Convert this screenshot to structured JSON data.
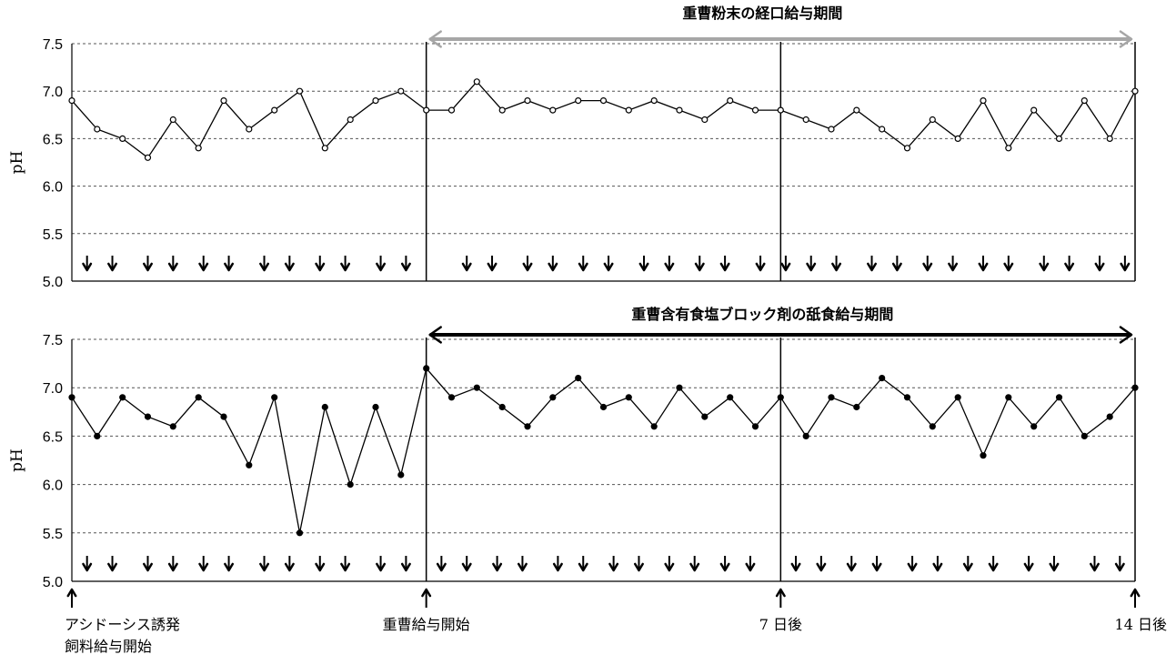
{
  "chart_data": [
    {
      "type": "line",
      "ylabel": "pH",
      "ylim": [
        5.0,
        7.5
      ],
      "yticks": [
        "5.0",
        "5.5",
        "6.0",
        "6.5",
        "7.0",
        "7.5"
      ],
      "xlim": [
        -7,
        14
      ],
      "grid": true,
      "marker": "open-circle",
      "series_color": "#000000",
      "period": {
        "label": "重曹粉末の経口給与期間",
        "start_day": 0,
        "end_day": 14,
        "arrow_color": "#a6a6a6"
      },
      "feeding_arrow_days": [
        -6.7,
        -6.2,
        -5.5,
        -5.0,
        -4.4,
        -3.9,
        -3.2,
        -2.7,
        -2.1,
        -1.6,
        -0.9,
        -0.4,
        0.8,
        1.3,
        2.0,
        2.5,
        3.1,
        3.6,
        4.3,
        4.8,
        5.4,
        5.9,
        6.6,
        7.1,
        7.6,
        8.1,
        8.8,
        9.3,
        9.9,
        10.4,
        11.0,
        11.5,
        12.2,
        12.7,
        13.3,
        13.8
      ],
      "series": [
        {
          "x": [
            -7.0,
            -6.5,
            -6.0,
            -5.5,
            -5.0,
            -4.5,
            -4.0,
            -3.5,
            -3.0,
            -2.5,
            -2.0,
            -1.5,
            -1.0,
            -0.5,
            0.0,
            0.5,
            1.0,
            1.5,
            2.0,
            2.5,
            3.0,
            3.5,
            4.0,
            4.5,
            5.0,
            5.5,
            6.0,
            6.5,
            7.0,
            7.5,
            8.0,
            8.5,
            9.0,
            9.5,
            10.0,
            10.5,
            11.0,
            11.5,
            12.0,
            12.5,
            13.0,
            13.5,
            14.0
          ],
          "y": [
            6.9,
            6.6,
            6.5,
            6.3,
            6.7,
            6.4,
            6.9,
            6.6,
            6.8,
            7.0,
            6.4,
            6.7,
            6.9,
            7.0,
            6.8,
            6.8,
            7.1,
            6.8,
            6.9,
            6.8,
            6.9,
            6.9,
            6.8,
            6.9,
            6.8,
            6.7,
            6.9,
            6.8,
            6.8,
            6.7,
            6.6,
            6.8,
            6.6,
            6.4,
            6.7,
            6.5,
            6.9,
            6.4,
            6.8,
            6.5,
            6.9,
            6.5,
            7.0
          ]
        }
      ]
    },
    {
      "type": "line",
      "ylabel": "pH",
      "ylim": [
        5.0,
        7.5
      ],
      "yticks": [
        "5.0",
        "5.5",
        "6.0",
        "6.5",
        "7.0",
        "7.5"
      ],
      "xlim": [
        -7,
        14
      ],
      "grid": true,
      "marker": "filled-circle",
      "series_color": "#000000",
      "period": {
        "label": "重曹含有食塩ブロック剤の舐食給与期間",
        "start_day": 0,
        "end_day": 14,
        "arrow_color": "#000000"
      },
      "feeding_arrow_days": [
        -6.7,
        -6.2,
        -5.5,
        -5.0,
        -4.4,
        -3.9,
        -3.2,
        -2.7,
        -2.1,
        -1.6,
        -0.9,
        -0.4,
        0.3,
        0.8,
        1.4,
        1.9,
        2.6,
        3.1,
        3.7,
        4.2,
        4.8,
        5.3,
        5.9,
        6.4,
        7.3,
        7.8,
        8.4,
        8.9,
        9.6,
        10.1,
        10.7,
        11.2,
        11.9,
        12.4,
        13.2,
        13.7
      ],
      "series": [
        {
          "x": [
            -7.0,
            -6.5,
            -6.0,
            -5.5,
            -5.0,
            -4.5,
            -4.0,
            -3.5,
            -3.0,
            -2.5,
            -2.0,
            -1.5,
            -1.0,
            -0.5,
            0.0,
            0.5,
            1.0,
            1.5,
            2.0,
            2.5,
            3.0,
            3.5,
            4.0,
            4.5,
            5.0,
            5.5,
            6.0,
            6.5,
            7.0,
            7.5,
            8.0,
            8.5,
            9.0,
            9.5,
            10.0,
            10.5,
            11.0,
            11.5,
            12.0,
            12.5,
            13.0,
            13.5,
            14.0
          ],
          "y": [
            6.9,
            6.5,
            6.9,
            6.7,
            6.6,
            6.9,
            6.7,
            6.2,
            6.9,
            5.5,
            6.8,
            6.0,
            6.8,
            6.1,
            7.2,
            6.9,
            7.0,
            6.8,
            6.6,
            6.9,
            7.1,
            6.8,
            6.9,
            6.6,
            7.0,
            6.7,
            6.9,
            6.6,
            6.9,
            6.5,
            6.9,
            6.8,
            7.1,
            6.9,
            6.6,
            6.9,
            6.3,
            6.9,
            6.6,
            6.9,
            6.5,
            6.7,
            7.0
          ]
        }
      ]
    }
  ],
  "x_markers": [
    {
      "day": -7,
      "lines": [
        "アシドーシス誘発",
        "飼料給与開始"
      ]
    },
    {
      "day": 0,
      "lines": [
        "重曹給与開始"
      ]
    },
    {
      "day": 7,
      "lines": [
        "7 日後"
      ]
    },
    {
      "day": 14,
      "lines": [
        "14 日後"
      ]
    }
  ]
}
